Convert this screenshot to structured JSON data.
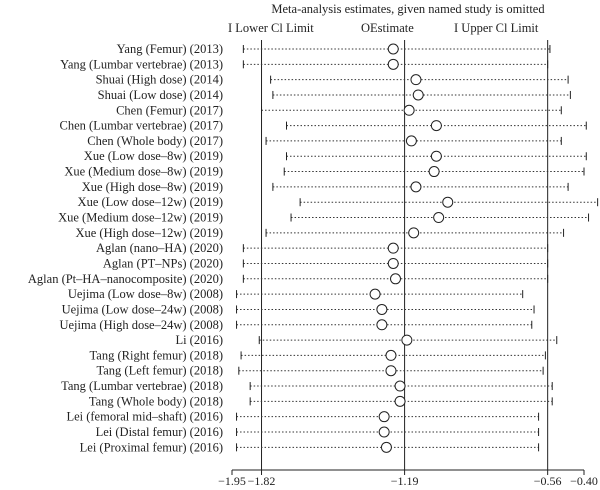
{
  "chart_data": {
    "type": "forest",
    "title": "Meta-analysis estimates, given named study is omitted",
    "legend": {
      "lower": "I Lower Cl Limit",
      "estimate": "OEstimate",
      "upper": "I Upper Cl Limit"
    },
    "xlim": [
      -1.95,
      -0.4
    ],
    "ticks": [
      {
        "value": -1.95,
        "label": "−1.95"
      },
      {
        "value": -1.82,
        "label": "−1.82"
      },
      {
        "value": -1.19,
        "label": "−1.19"
      },
      {
        "value": -0.56,
        "label": "−0.56"
      },
      {
        "value": -0.4,
        "label": "−0.40"
      }
    ],
    "reference_lines": [
      -1.82,
      -1.19,
      -0.56
    ],
    "studies": [
      {
        "label": "Yang (Femur) (2013)",
        "lower": -1.9,
        "estimate": -1.24,
        "upper": -0.55
      },
      {
        "label": "Yang (Lumbar vertebrae) (2013)",
        "lower": -1.9,
        "estimate": -1.24,
        "upper": -0.56
      },
      {
        "label": "Shuai (High dose) (2014)",
        "lower": -1.78,
        "estimate": -1.14,
        "upper": -0.47
      },
      {
        "label": "Shuai (Low dose) (2014)",
        "lower": -1.77,
        "estimate": -1.13,
        "upper": -0.46
      },
      {
        "label": "Chen (Femur) (2017)",
        "lower": -1.82,
        "estimate": -1.17,
        "upper": -0.5
      },
      {
        "label": "Chen (Lumbar vertebrae) (2017)",
        "lower": -1.71,
        "estimate": -1.05,
        "upper": -0.39
      },
      {
        "label": "Chen (Whole body) (2017)",
        "lower": -1.8,
        "estimate": -1.16,
        "upper": -0.5
      },
      {
        "label": "Xue (Low dose–8w) (2019)",
        "lower": -1.71,
        "estimate": -1.05,
        "upper": -0.39
      },
      {
        "label": "Xue (Medium dose–8w) (2019)",
        "lower": -1.72,
        "estimate": -1.06,
        "upper": -0.4
      },
      {
        "label": "Xue (High dose–8w) (2019)",
        "lower": -1.77,
        "estimate": -1.14,
        "upper": -0.47
      },
      {
        "label": "Xue (Low dose–12w) (2019)",
        "lower": -1.65,
        "estimate": -1.0,
        "upper": -0.34
      },
      {
        "label": "Xue (Medium dose–12w) (2019)",
        "lower": -1.69,
        "estimate": -1.04,
        "upper": -0.38
      },
      {
        "label": "Xue (High dose–12w) (2019)",
        "lower": -1.8,
        "estimate": -1.15,
        "upper": -0.49
      },
      {
        "label": "Aglan (nano–HA) (2020)",
        "lower": -1.9,
        "estimate": -1.24,
        "upper": -0.56
      },
      {
        "label": "Aglan (PT–NPs) (2020)",
        "lower": -1.9,
        "estimate": -1.24,
        "upper": -0.56
      },
      {
        "label": "Aglan (Pt–HA–nanocomposite) (2020)",
        "lower": -1.9,
        "estimate": -1.23,
        "upper": -0.56
      },
      {
        "label": "Uejima (Low dose–8w) (2008)",
        "lower": -1.93,
        "estimate": -1.32,
        "upper": -0.67
      },
      {
        "label": "Uejima (Low dose–24w) (2008)",
        "lower": -1.93,
        "estimate": -1.29,
        "upper": -0.62
      },
      {
        "label": "Uejima (High dose–24w) (2008)",
        "lower": -1.93,
        "estimate": -1.29,
        "upper": -0.63
      },
      {
        "label": "Li (2016)",
        "lower": -1.83,
        "estimate": -1.18,
        "upper": -0.52
      },
      {
        "label": "Tang (Right femur) (2018)",
        "lower": -1.91,
        "estimate": -1.25,
        "upper": -0.57
      },
      {
        "label": "Tang (Left femur) (2018)",
        "lower": -1.92,
        "estimate": -1.25,
        "upper": -0.58
      },
      {
        "label": "Tang (Lumbar vertebrae) (2018)",
        "lower": -1.87,
        "estimate": -1.21,
        "upper": -0.54
      },
      {
        "label": "Tang (Whole body) (2018)",
        "lower": -1.87,
        "estimate": -1.21,
        "upper": -0.54
      },
      {
        "label": "Lei (femoral mid–shaft) (2016)",
        "lower": -1.93,
        "estimate": -1.28,
        "upper": -0.6
      },
      {
        "label": "Lei (Distal femur) (2016)",
        "lower": -1.93,
        "estimate": -1.28,
        "upper": -0.6
      },
      {
        "label": "Lei (Proximal femur) (2016)",
        "lower": -1.93,
        "estimate": -1.27,
        "upper": -0.6
      }
    ]
  }
}
